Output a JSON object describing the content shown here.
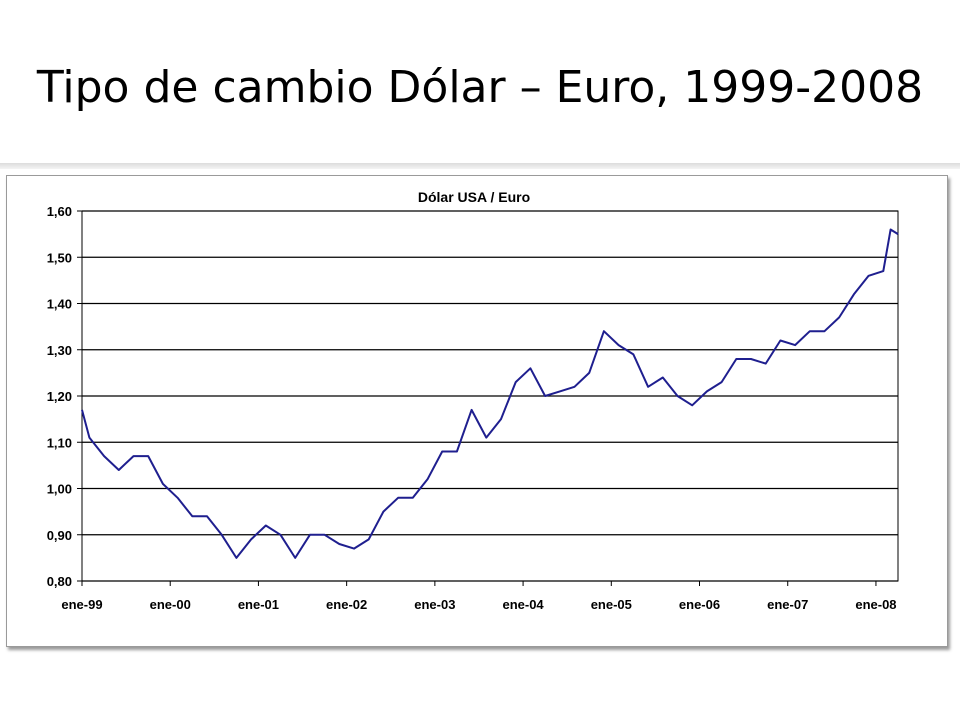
{
  "slide": {
    "title": "Tipo de cambio Dólar – Euro, 1999-2008"
  },
  "colors": {
    "series": "#1f1f8f",
    "grid": "#000000",
    "plot_background": "#ffffff"
  },
  "chart_data": {
    "type": "line",
    "title": "Dólar USA / Euro",
    "xlabel": "",
    "ylabel": "",
    "ylim": [
      0.8,
      1.6
    ],
    "xlim": [
      "1999-01",
      "2008-04"
    ],
    "grid": true,
    "legend": "none",
    "y_ticks": [
      "0,80",
      "0,90",
      "1,00",
      "1,10",
      "1,20",
      "1,30",
      "1,40",
      "1,50",
      "1,60"
    ],
    "y_tick_values": [
      0.8,
      0.9,
      1.0,
      1.1,
      1.2,
      1.3,
      1.4,
      1.5,
      1.6
    ],
    "x_ticks": [
      "ene-99",
      "ene-00",
      "ene-01",
      "ene-02",
      "ene-03",
      "ene-04",
      "ene-05",
      "ene-06",
      "ene-07",
      "ene-08"
    ],
    "x_tick_values": [
      "1999-01",
      "2000-01",
      "2001-01",
      "2002-01",
      "2003-01",
      "2004-01",
      "2005-01",
      "2006-01",
      "2007-01",
      "2008-01"
    ],
    "series": [
      {
        "x": [
          "1999-01",
          "1999-02",
          "1999-04",
          "1999-06",
          "1999-08",
          "1999-10",
          "1999-12",
          "2000-02",
          "2000-04",
          "2000-06",
          "2000-08",
          "2000-10",
          "2000-12",
          "2001-02",
          "2001-04",
          "2001-06",
          "2001-08",
          "2001-10",
          "2001-12",
          "2002-02",
          "2002-04",
          "2002-06",
          "2002-08",
          "2002-10",
          "2002-12",
          "2003-02",
          "2003-04",
          "2003-06",
          "2003-08",
          "2003-10",
          "2003-12",
          "2004-02",
          "2004-04",
          "2004-06",
          "2004-08",
          "2004-10",
          "2004-12",
          "2005-02",
          "2005-04",
          "2005-06",
          "2005-08",
          "2005-10",
          "2005-12",
          "2006-02",
          "2006-04",
          "2006-06",
          "2006-08",
          "2006-10",
          "2006-12",
          "2007-02",
          "2007-04",
          "2007-06",
          "2007-08",
          "2007-10",
          "2007-12",
          "2008-02",
          "2008-03",
          "2008-04"
        ],
        "values": [
          1.17,
          1.11,
          1.07,
          1.04,
          1.07,
          1.07,
          1.01,
          0.98,
          0.94,
          0.94,
          0.9,
          0.85,
          0.89,
          0.92,
          0.9,
          0.85,
          0.9,
          0.9,
          0.88,
          0.87,
          0.89,
          0.95,
          0.98,
          0.98,
          1.02,
          1.08,
          1.08,
          1.17,
          1.11,
          1.15,
          1.23,
          1.26,
          1.2,
          1.21,
          1.22,
          1.25,
          1.34,
          1.31,
          1.29,
          1.22,
          1.24,
          1.2,
          1.18,
          1.21,
          1.23,
          1.28,
          1.28,
          1.27,
          1.32,
          1.31,
          1.34,
          1.34,
          1.37,
          1.42,
          1.46,
          1.47,
          1.56,
          1.55
        ]
      }
    ]
  }
}
